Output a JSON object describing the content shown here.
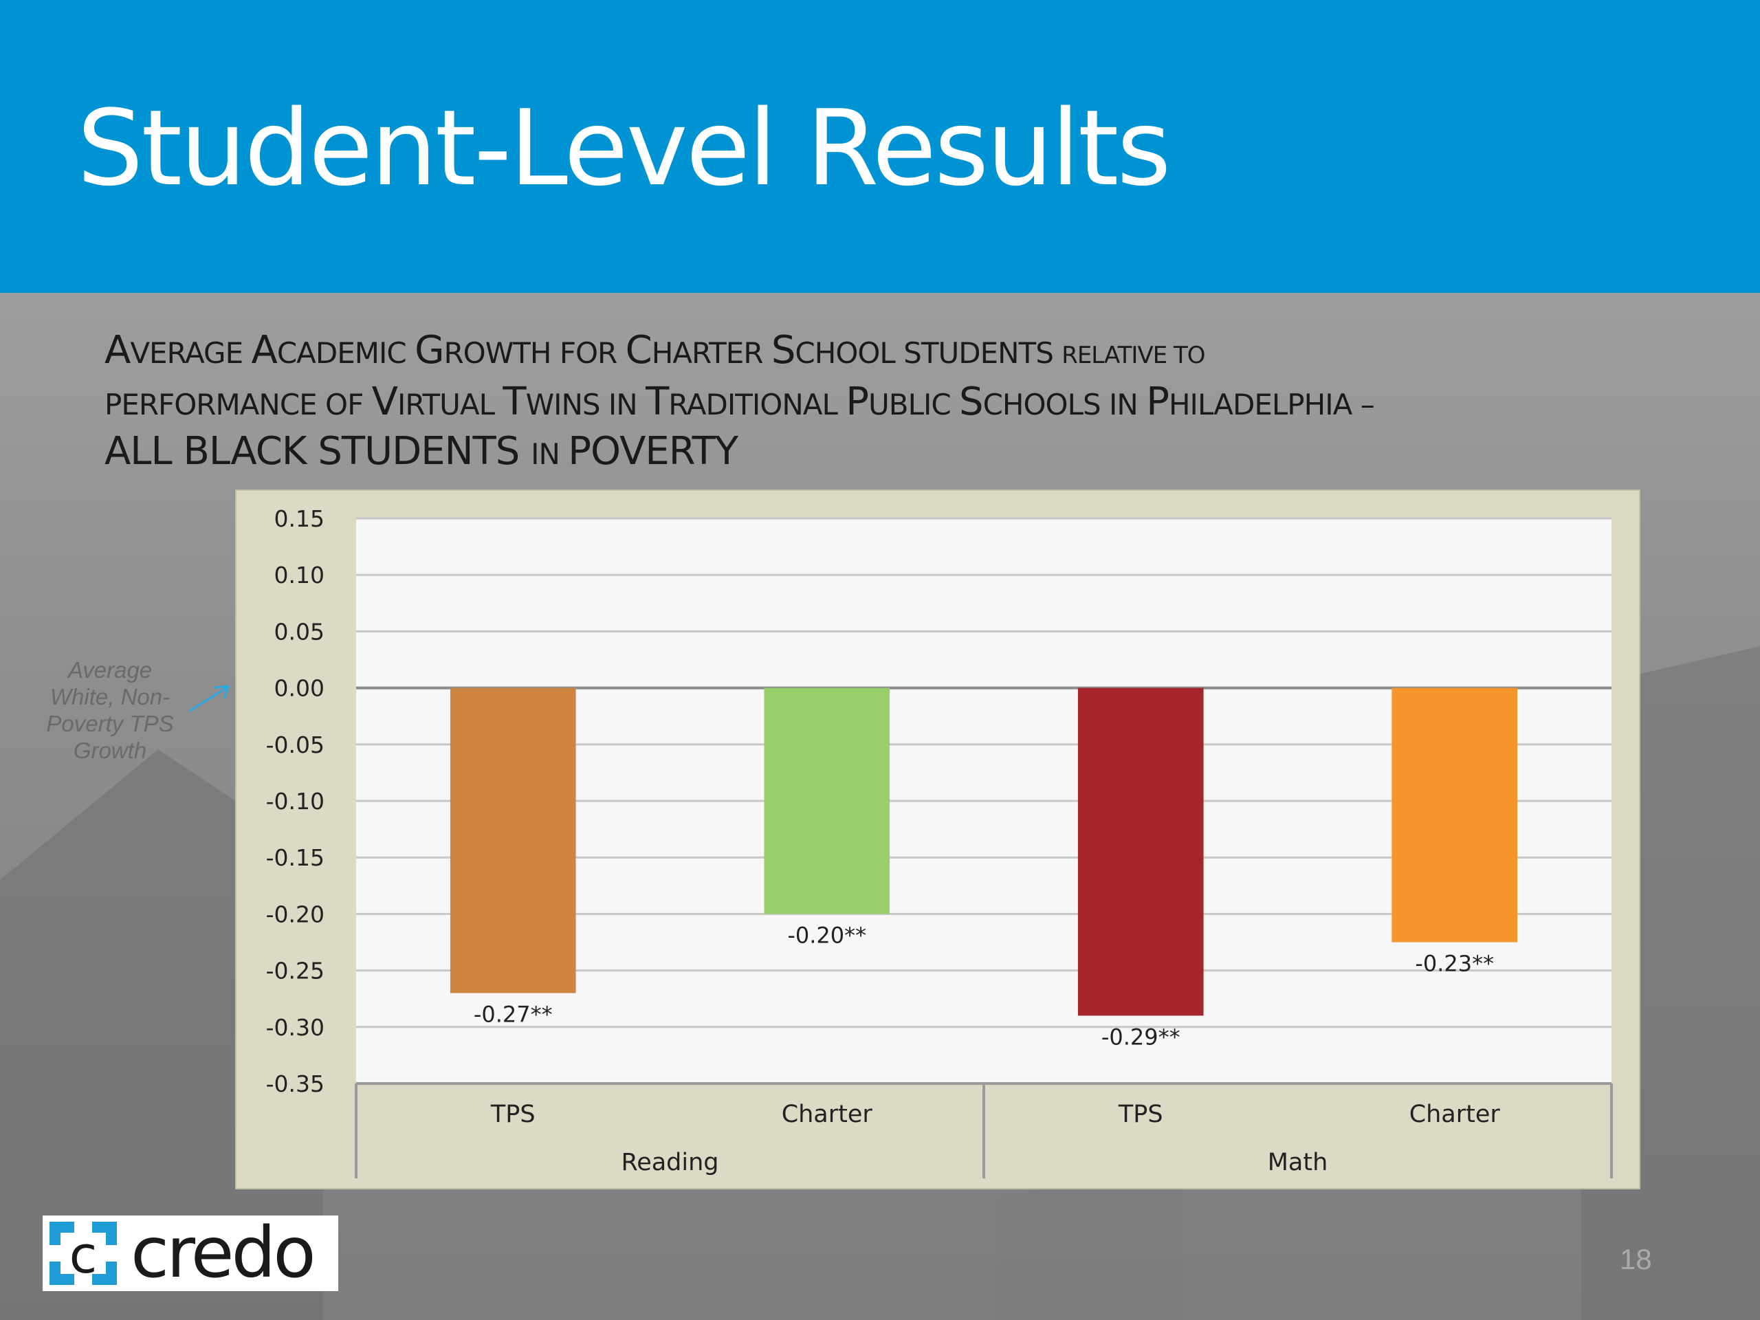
{
  "header": {
    "title": "Student-Level Results"
  },
  "subtitle": {
    "line1": [
      {
        "t": "A",
        "s": ""
      },
      {
        "t": "VERAGE ",
        "s": "sc"
      },
      {
        "t": "A",
        "s": ""
      },
      {
        "t": "CADEMIC ",
        "s": "sc"
      },
      {
        "t": "G",
        "s": ""
      },
      {
        "t": "ROWTH FOR ",
        "s": "sc"
      },
      {
        "t": "C",
        "s": ""
      },
      {
        "t": "HARTER ",
        "s": "sc"
      },
      {
        "t": "S",
        "s": ""
      },
      {
        "t": "CHOOL STUDENTS ",
        "s": "sc"
      },
      {
        "t": "RELATIVE TO",
        "s": "tiny"
      }
    ],
    "line2": [
      {
        "t": "PERFORMANCE OF ",
        "s": "sc"
      },
      {
        "t": "V",
        "s": ""
      },
      {
        "t": "IRTUAL ",
        "s": "sc"
      },
      {
        "t": "T",
        "s": ""
      },
      {
        "t": "WINS IN ",
        "s": "sc"
      },
      {
        "t": "T",
        "s": ""
      },
      {
        "t": "RADITIONAL ",
        "s": "sc"
      },
      {
        "t": "P",
        "s": ""
      },
      {
        "t": "UBLIC ",
        "s": "sc"
      },
      {
        "t": "S",
        "s": ""
      },
      {
        "t": "CHOOLS IN ",
        "s": "sc"
      },
      {
        "t": "P",
        "s": ""
      },
      {
        "t": "HILADELPHIA –",
        "s": "sc"
      }
    ],
    "line3": [
      {
        "t": "ALL BLACK STUDENTS ",
        "s": ""
      },
      {
        "t": "IN ",
        "s": "sc"
      },
      {
        "t": "POVERTY",
        "s": ""
      }
    ]
  },
  "annotation": {
    "text": "Average White, Non-Poverty TPS Growth",
    "arrow_color": "#2aa8e0"
  },
  "chart_data": {
    "type": "bar",
    "ylim": [
      -0.35,
      0.15
    ],
    "yticks": [
      "0.15",
      "0.10",
      "0.05",
      "0.00",
      "-0.05",
      "-0.10",
      "-0.15",
      "-0.20",
      "-0.25",
      "-0.30",
      "-0.35"
    ],
    "ytick_values": [
      0.15,
      0.1,
      0.05,
      0.0,
      -0.05,
      -0.1,
      -0.15,
      -0.2,
      -0.25,
      -0.3,
      -0.35
    ],
    "grid": true,
    "legend": "none",
    "groups": [
      {
        "name": "Reading",
        "categories": [
          "TPS",
          "Charter"
        ]
      },
      {
        "name": "Math",
        "categories": [
          "TPS",
          "Charter"
        ]
      }
    ],
    "bars": [
      {
        "group": "Reading",
        "category": "TPS",
        "value": -0.27,
        "label": "-0.27**",
        "color": "#cd853f"
      },
      {
        "group": "Reading",
        "category": "Charter",
        "value": -0.2,
        "label": "-0.20**",
        "color": "#97cf6b"
      },
      {
        "group": "Math",
        "category": "TPS",
        "value": -0.29,
        "label": "-0.29**",
        "color": "#a4262b"
      },
      {
        "group": "Math",
        "category": "Charter",
        "value": -0.225,
        "label": "-0.23**",
        "color": "#f6942d"
      }
    ]
  },
  "logo": {
    "text": "credo",
    "mark_color": "#1f9bd6"
  },
  "page": {
    "number": "18"
  }
}
